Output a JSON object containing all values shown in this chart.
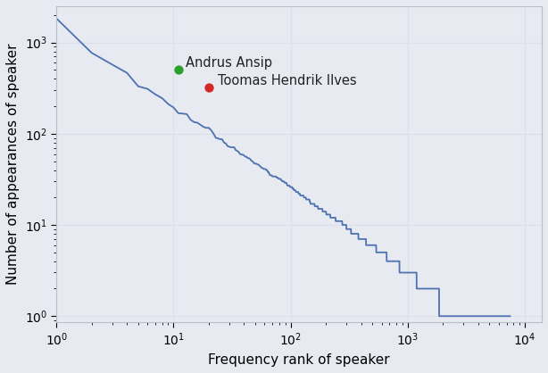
{
  "title": "",
  "xlabel": "Frequency rank of speaker",
  "ylabel": "Number of appearances of speaker",
  "background_color": "#e8eaf2",
  "line_color": "#4c72b0",
  "andrus_ansip": {
    "rank": 11,
    "value": 500,
    "color": "#2ca02c",
    "label": "Andrus Ansip"
  },
  "toomas_hendrik": {
    "rank": 20,
    "value": 320,
    "color": "#d62728",
    "label": "Toomas Hendrik Ilves"
  },
  "xlim": [
    1,
    14000
  ],
  "ylim": [
    0.85,
    2500
  ],
  "num_speakers": 7500,
  "top_value": 1500,
  "grid_color": "#dde0eb"
}
